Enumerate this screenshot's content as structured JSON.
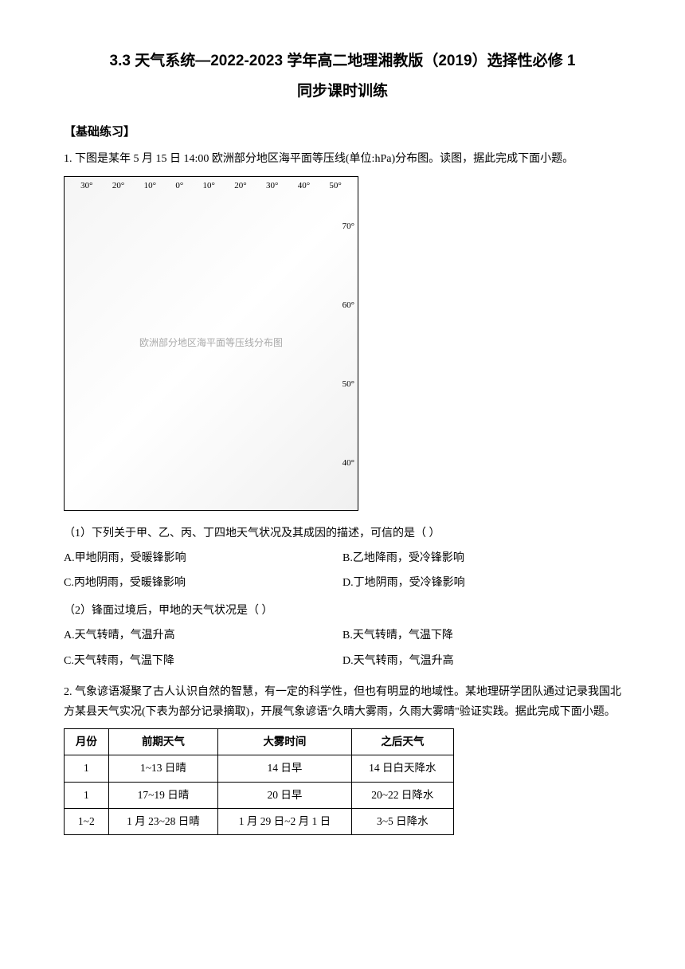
{
  "header": {
    "title": "3.3 天气系统—2022-2023 学年高二地理湘教版（2019）选择性必修 1",
    "subtitle": "同步课时训练"
  },
  "section": {
    "heading": "【基础练习】"
  },
  "q1": {
    "intro": "1. 下图是某年 5 月 15 日 14:00 欧洲部分地区海平面等压线(单位:hPa)分布图。读图，据此完成下面小题。",
    "map": {
      "top_longitudes": [
        "30°",
        "20°",
        "10°",
        "0°",
        "10°",
        "20°",
        "30°",
        "40°",
        "50°"
      ],
      "right_latitudes": [
        "70°",
        "60°",
        "50°",
        "40°"
      ]
    },
    "sub1": {
      "prompt": "（1）下列关于甲、乙、丙、丁四地天气状况及其成因的描述，可信的是（  ）",
      "A": "A.甲地阴雨，受暖锋影响",
      "B": "B.乙地降雨，受冷锋影响",
      "C": "C.丙地阴雨，受暖锋影响",
      "D": "D.丁地阴雨，受冷锋影响"
    },
    "sub2": {
      "prompt": "（2）锋面过境后，甲地的天气状况是（  ）",
      "A": "A.天气转晴，气温升高",
      "B": "B.天气转晴，气温下降",
      "C": "C.天气转雨，气温下降",
      "D": "D.天气转雨，气温升高"
    }
  },
  "q2": {
    "intro": "2. 气象谚语凝聚了古人认识自然的智慧，有一定的科学性，但也有明显的地域性。某地理研学团队通过记录我国北方某县天气实况(下表为部分记录摘取)，开展气象谚语\"久晴大雾雨，久雨大雾晴\"验证实践。据此完成下面小题。",
    "table": {
      "columns": [
        "月份",
        "前期天气",
        "大雾时间",
        "之后天气"
      ],
      "rows": [
        [
          "1",
          "1~13 日晴",
          "14 日早",
          "14 日白天降水"
        ],
        [
          "1",
          "17~19 日晴",
          "20 日早",
          "20~22 日降水"
        ],
        [
          "1~2",
          "1 月 23~28 日晴",
          "1 月 29 日~2 月 1 日",
          "3~5 日降水"
        ]
      ]
    }
  }
}
